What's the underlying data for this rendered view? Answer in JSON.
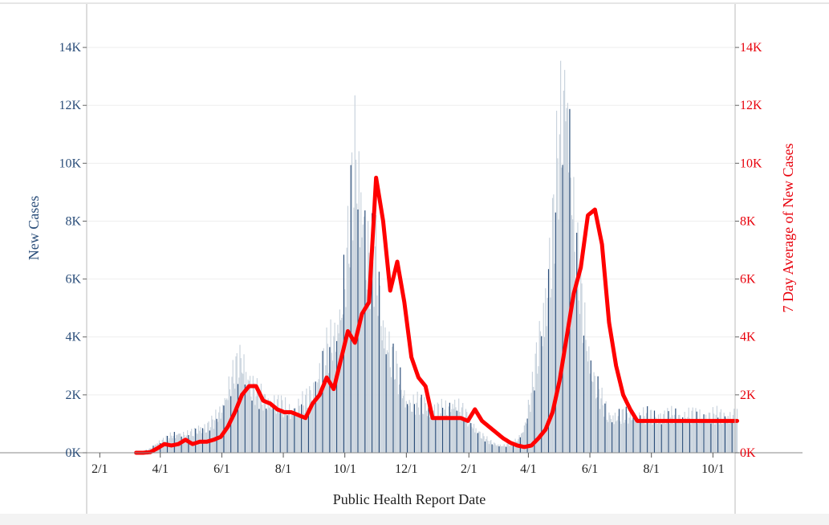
{
  "chart_data": {
    "type": "bar",
    "xlabel": "Public Health Report Date",
    "ylabel_left": "New Cases",
    "ylabel_right": "7 Day Average of New Cases",
    "x_tick_labels": [
      "2/1",
      "4/1",
      "6/1",
      "8/1",
      "10/1",
      "12/1",
      "2/1",
      "4/1",
      "6/1",
      "8/1",
      "10/1"
    ],
    "y_tick_labels_left": [
      "0K",
      "2K",
      "4K",
      "6K",
      "8K",
      "10K",
      "12K",
      "14K"
    ],
    "y_tick_labels_right": [
      "0K",
      "2K",
      "4K",
      "6K",
      "8K",
      "10K",
      "12K",
      "14K"
    ],
    "ylim": [
      0,
      15500
    ],
    "x_range_days": [
      0,
      643
    ],
    "grid": true,
    "colors": {
      "bars": "#c9d3dd",
      "bars_highlight": "#2b4e7a",
      "average_line": "#ff0000",
      "left_axis_text": "#2b4e7a",
      "right_axis_text": "#e8000b"
    },
    "series": [
      {
        "type": "bar",
        "x_start": "2020-03-15",
        "x_end": "2021-10-25",
        "values_step_days": 7,
        "values_sampled_weekly": [
          20,
          150,
          350,
          450,
          600,
          700,
          600,
          700,
          900,
          900,
          1100,
          1500,
          2200,
          2800,
          3300,
          2600,
          2100,
          1900,
          1800,
          1700,
          1600,
          1500,
          1600,
          1800,
          2200,
          2800,
          3500,
          4000,
          5000,
          7000,
          10500,
          9000,
          6500,
          6800,
          4500,
          3500,
          2800,
          2000,
          1700,
          1700,
          1700,
          1500,
          1500,
          1500,
          1800,
          1500,
          1200,
          900,
          600,
          400,
          300,
          250,
          300,
          450,
          900,
          2000,
          3800,
          5500,
          7500,
          11000,
          13500,
          8000,
          5500,
          3700,
          2500,
          1800,
          1300
        ]
      },
      {
        "type": "line",
        "name": "7 Day Average of New Cases",
        "x_start": "2020-03-08",
        "x_end": "2021-10-25",
        "values_step_days": 7,
        "values": [
          0,
          0,
          20,
          150,
          300,
          250,
          300,
          450,
          300,
          380,
          380,
          450,
          550,
          900,
          1400,
          2000,
          2300,
          2300,
          1800,
          1700,
          1500,
          1400,
          1400,
          1300,
          1200,
          1700,
          2000,
          2600,
          2200,
          3200,
          4200,
          3800,
          4800,
          5200,
          9500,
          8000,
          5600,
          6600,
          5200,
          3300,
          2600,
          2300,
          1200,
          1200,
          1200,
          1200,
          1200,
          1100,
          1500,
          1100,
          900,
          700,
          500,
          350,
          250,
          200,
          250,
          500,
          800,
          1400,
          2500,
          4000,
          5500,
          6400,
          8200,
          8400,
          7200,
          4500,
          3000,
          2000,
          1500,
          1100
        ]
      }
    ]
  }
}
